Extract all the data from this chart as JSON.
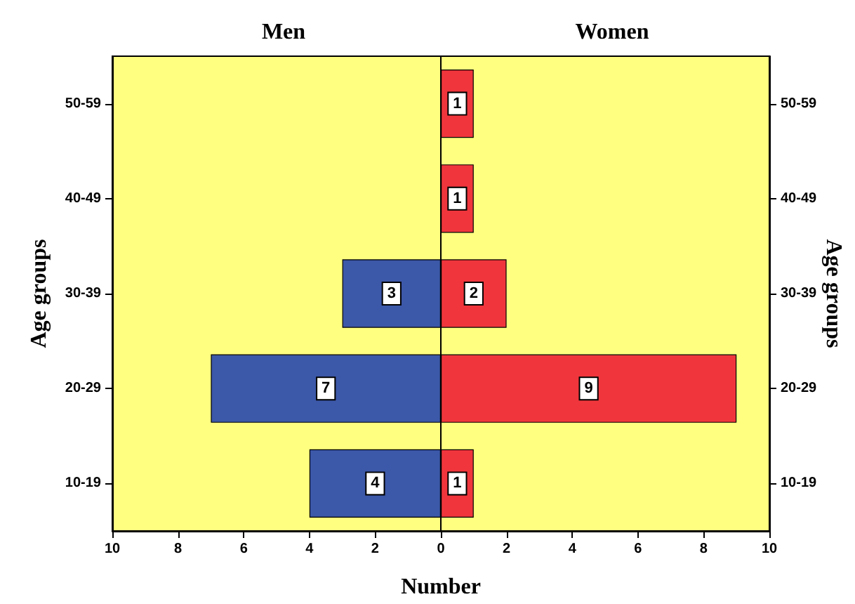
{
  "chart_data": [
    {
      "type": "bar",
      "orientation": "horizontal",
      "title": "Men",
      "xlabel": "Number",
      "ylabel": "Age groups",
      "categories": [
        "50-59",
        "40-49",
        "30-39",
        "20-29",
        "10-19"
      ],
      "series": [
        {
          "color": "#3c58a8",
          "values": [
            null,
            null,
            3,
            7,
            4
          ]
        }
      ],
      "data_labels": true,
      "xlim": [
        10,
        0
      ],
      "xticks": [
        10,
        8,
        6,
        4,
        2,
        0
      ],
      "grid": false
    },
    {
      "type": "bar",
      "orientation": "horizontal",
      "title": "Women",
      "ylabel": "Age groups",
      "categories": [
        "50-59",
        "40-49",
        "30-39",
        "20-29",
        "10-19"
      ],
      "series": [
        {
          "color": "#f0363c",
          "values": [
            1,
            1,
            2,
            9,
            1
          ]
        }
      ],
      "data_labels": true,
      "xlim": [
        0,
        10
      ],
      "xticks": [
        2,
        4,
        6,
        8,
        10
      ],
      "grid": false
    }
  ]
}
